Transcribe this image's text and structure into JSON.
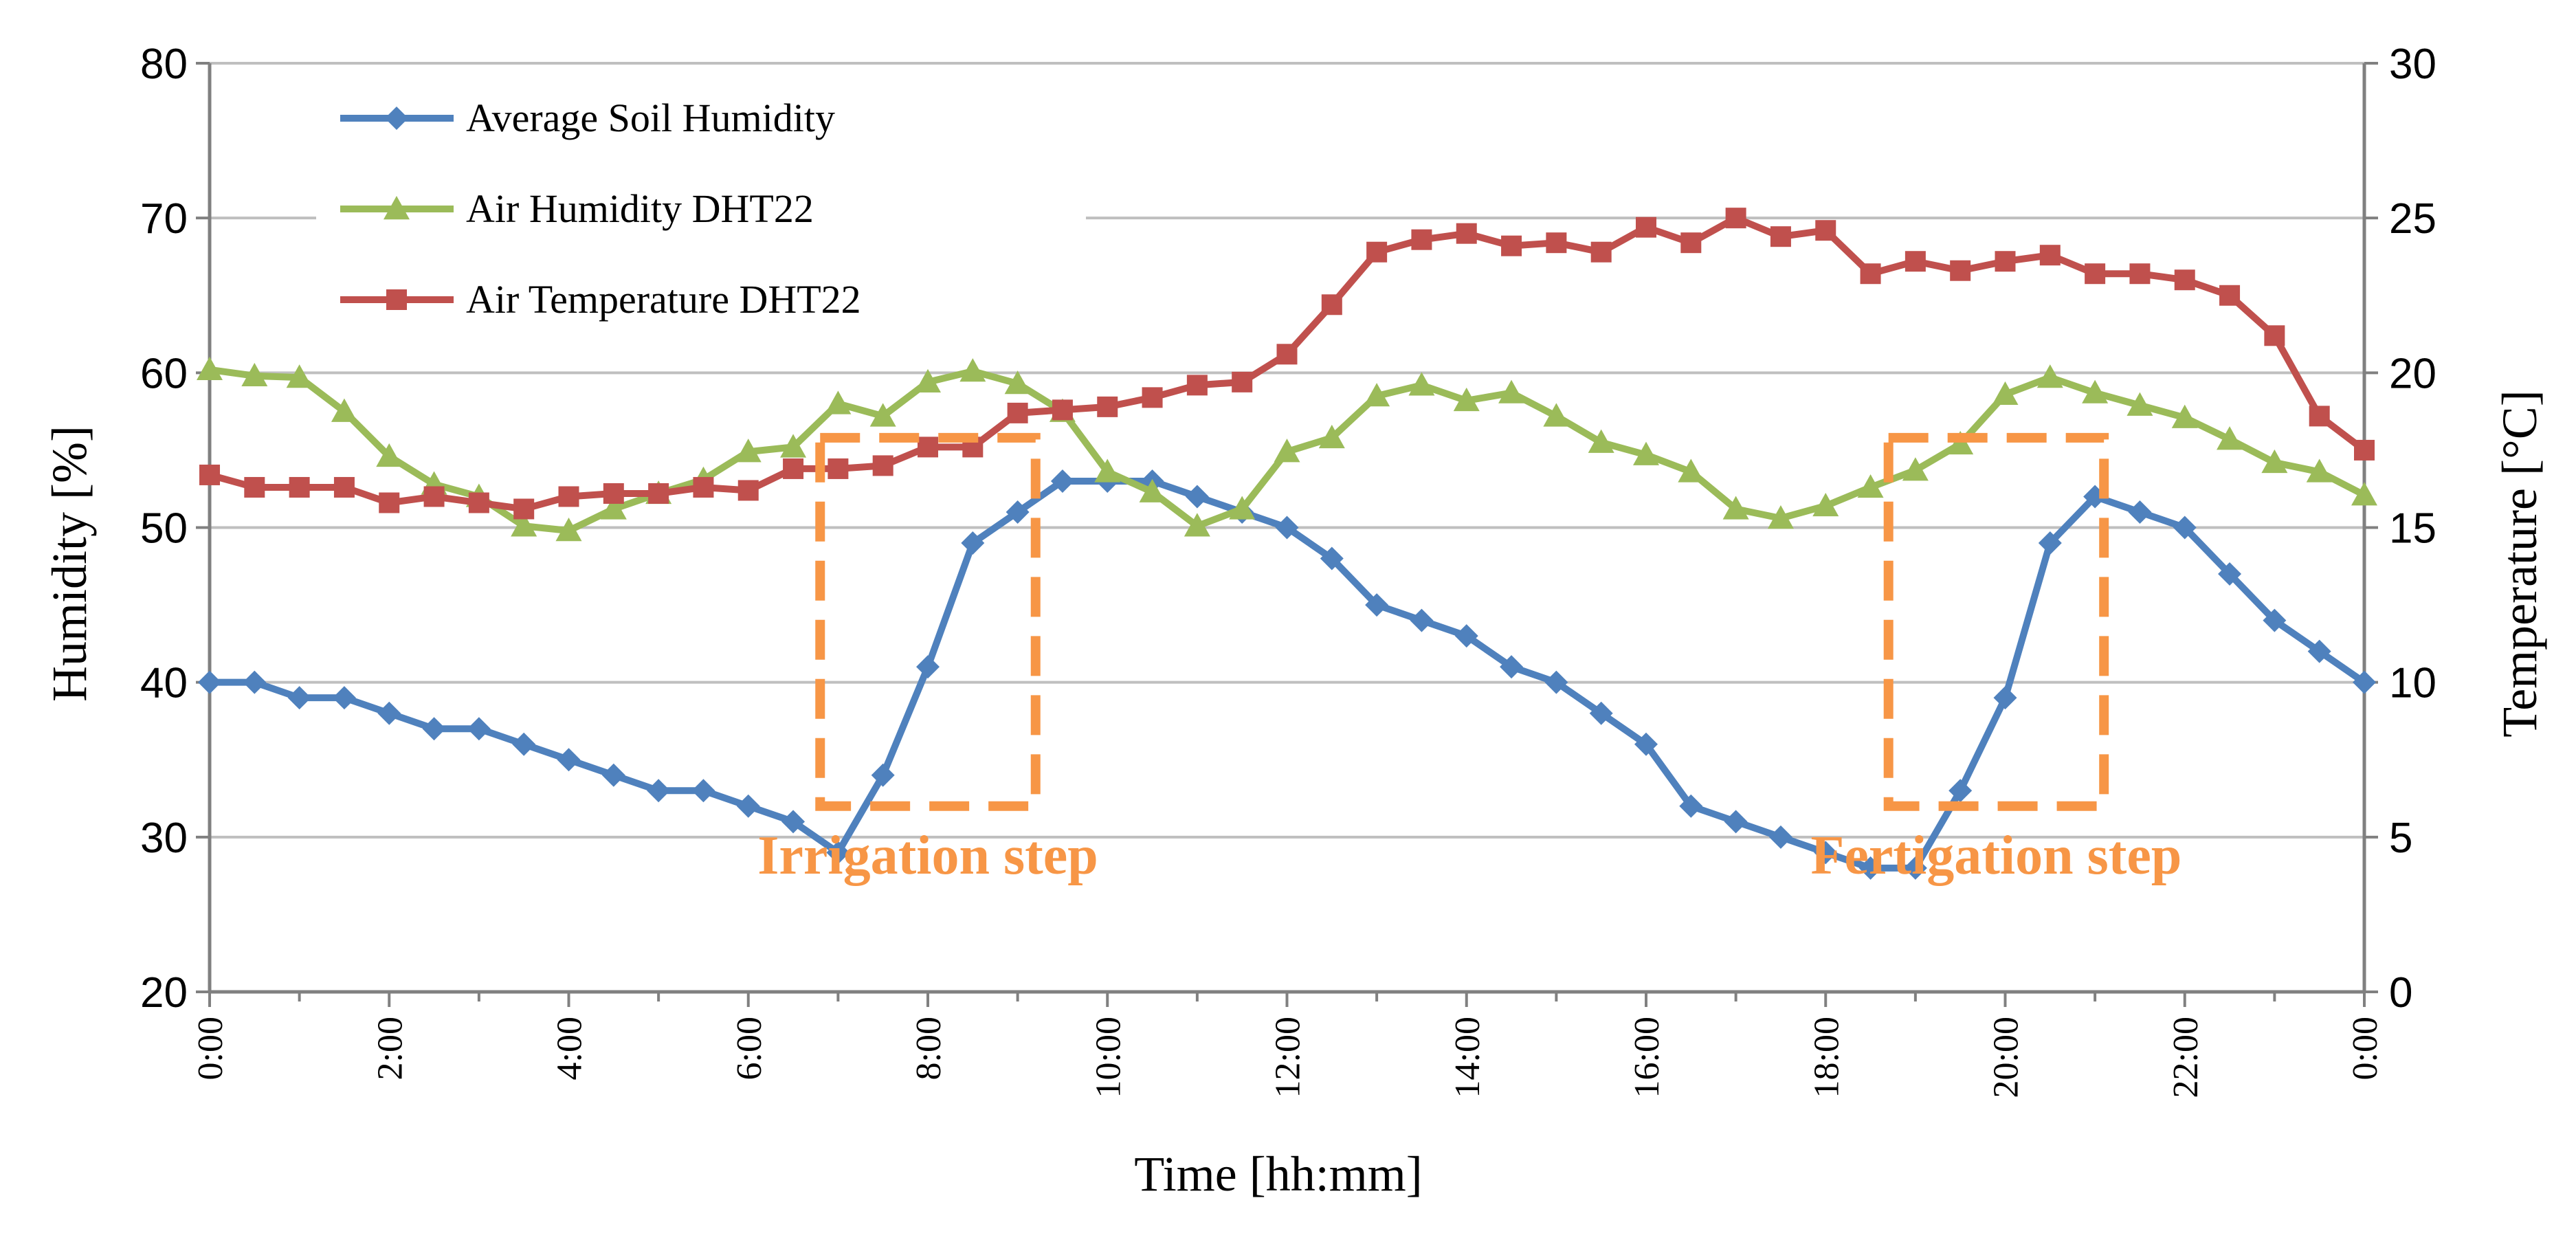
{
  "chart_data": {
    "type": "line",
    "title": "",
    "xlabel": "Time [hh:mm]",
    "ylabel_left": "Humidity [%]",
    "ylabel_right": "Temperature [°C]",
    "ylim_left": [
      20,
      80
    ],
    "ylim_right": [
      0,
      30
    ],
    "yticks_left": [
      20,
      30,
      40,
      50,
      60,
      70,
      80
    ],
    "yticks_right": [
      0,
      5,
      10,
      15,
      20,
      25,
      30
    ],
    "x_hours": [
      0,
      0.5,
      1,
      1.5,
      2,
      2.5,
      3,
      3.5,
      4,
      4.5,
      5,
      5.5,
      6,
      6.5,
      7,
      7.5,
      8,
      8.5,
      9,
      9.5,
      10,
      10.5,
      11,
      11.5,
      12,
      12.5,
      13,
      13.5,
      14,
      14.5,
      15,
      15.5,
      16,
      16.5,
      17,
      17.5,
      18,
      18.5,
      19,
      19.5,
      20,
      20.5,
      21,
      21.5,
      22,
      22.5,
      23,
      23.5,
      24
    ],
    "x_tick_labels": [
      "0:00",
      "2:00",
      "4:00",
      "6:00",
      "8:00",
      "10:00",
      "12:00",
      "14:00",
      "16:00",
      "18:00",
      "20:00",
      "22:00",
      "0:00"
    ],
    "grid": true,
    "legend_position": "top-left",
    "series": [
      {
        "name": "Average Soil Humidity",
        "axis": "left",
        "color": "#4f81bd",
        "marker": "diamond",
        "values": [
          40,
          40,
          39,
          39,
          38,
          37,
          37,
          36,
          35,
          34,
          33,
          33,
          32,
          31,
          29,
          34,
          41,
          49,
          51,
          53,
          53,
          53,
          52,
          51,
          50,
          48,
          45,
          44,
          43,
          41,
          40,
          38,
          36,
          32,
          31,
          30,
          29,
          28,
          28,
          33,
          39,
          49,
          52,
          51,
          50,
          47,
          44,
          42,
          40
        ]
      },
      {
        "name": "Air Humidity DHT22",
        "axis": "left",
        "color": "#9bbb59",
        "marker": "triangle",
        "values": [
          60.2,
          59.8,
          59.7,
          57.5,
          54.6,
          52.8,
          52,
          50.1,
          49.8,
          51.2,
          52.2,
          53.1,
          54.9,
          55.2,
          58,
          57.2,
          59.4,
          60.1,
          59.3,
          57.5,
          53.6,
          52.3,
          50.1,
          51.2,
          54.9,
          55.8,
          58.5,
          59.2,
          58.2,
          58.7,
          57.2,
          55.5,
          54.7,
          53.6,
          51.2,
          50.6,
          51.4,
          52.6,
          53.7,
          55.4,
          58.6,
          59.7,
          58.7,
          57.9,
          57.1,
          55.7,
          54.2,
          53.6,
          52.1
        ]
      },
      {
        "name": "Air Temperature DHT22",
        "axis": "right",
        "color": "#c0504d",
        "marker": "square",
        "values": [
          16.7,
          16.3,
          16.3,
          16.3,
          15.8,
          16,
          15.8,
          15.6,
          16,
          16.1,
          16.1,
          16.3,
          16.2,
          16.9,
          16.9,
          17,
          17.6,
          17.6,
          18.7,
          18.8,
          18.9,
          19.2,
          19.6,
          19.7,
          20.6,
          22.2,
          23.9,
          24.3,
          24.5,
          24.1,
          24.2,
          23.9,
          24.7,
          24.2,
          25,
          24.4,
          24.6,
          23.2,
          23.6,
          23.3,
          23.6,
          23.8,
          23.2,
          23.2,
          23,
          22.5,
          21.2,
          18.6,
          17.5
        ]
      }
    ],
    "annotations": [
      {
        "text": "Irrigation step",
        "color": "#f79646",
        "x_start": 6.8,
        "x_end": 9.2,
        "y_low": 32,
        "y_high": 55.8
      },
      {
        "text": "Fertigation step",
        "color": "#f79646",
        "x_start": 18.7,
        "x_end": 21.1,
        "y_low": 32,
        "y_high": 55.8
      }
    ]
  }
}
